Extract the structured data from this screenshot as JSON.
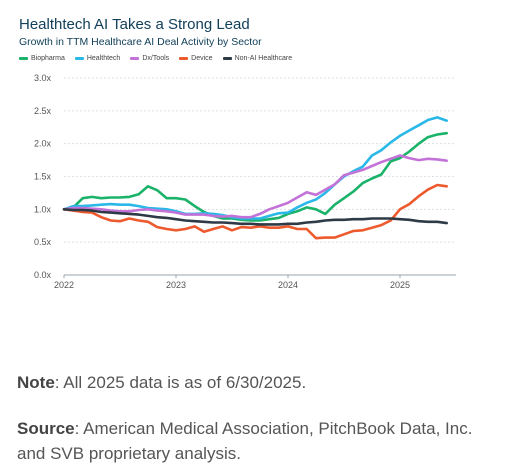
{
  "chart_data": {
    "type": "line",
    "title": "Healthtech AI Takes a Strong Lead",
    "subtitle": "Growth in TTM Healthcare AI Deal Activity by Sector",
    "xlabel": "",
    "ylabel": "",
    "ylim": [
      0,
      3
    ],
    "xlim": [
      2022.0,
      2025.5
    ],
    "y_ticks": [
      "0.0x",
      "0.5x",
      "1.0x",
      "1.5x",
      "2.0x",
      "2.5x",
      "3.0x"
    ],
    "x_ticks": [
      "2022",
      "2023",
      "2024",
      "2025"
    ],
    "grid": "horizontal",
    "legend": "top-left",
    "series": [
      {
        "name": "Biopharma",
        "color": "#1bb36a",
        "x": [
          2022.0,
          2022.083,
          2022.167,
          2022.25,
          2022.333,
          2022.417,
          2022.5,
          2022.583,
          2022.667,
          2022.75,
          2022.833,
          2022.917,
          2023.0,
          2023.083,
          2023.167,
          2023.25,
          2023.333,
          2023.417,
          2023.5,
          2023.583,
          2023.667,
          2023.75,
          2023.833,
          2023.917,
          2024.0,
          2024.083,
          2024.167,
          2024.25,
          2024.333,
          2024.417,
          2024.5,
          2024.583,
          2024.667,
          2024.75,
          2024.833,
          2024.917,
          2025.0,
          2025.083,
          2025.167,
          2025.25,
          2025.333,
          2025.417
        ],
        "y": [
          1.0,
          1.03,
          1.17,
          1.19,
          1.17,
          1.18,
          1.18,
          1.19,
          1.23,
          1.35,
          1.29,
          1.17,
          1.17,
          1.15,
          1.05,
          0.96,
          0.9,
          0.86,
          0.86,
          0.84,
          0.83,
          0.83,
          0.85,
          0.87,
          0.93,
          0.97,
          1.03,
          1.0,
          0.93,
          1.07,
          1.17,
          1.27,
          1.4,
          1.47,
          1.53,
          1.73,
          1.78,
          1.88,
          2.0,
          2.1,
          2.14,
          2.16
        ]
      },
      {
        "name": "Healthtech",
        "color": "#2ab8e8",
        "x": [
          2022.0,
          2022.083,
          2022.167,
          2022.25,
          2022.333,
          2022.417,
          2022.5,
          2022.583,
          2022.667,
          2022.75,
          2022.833,
          2022.917,
          2023.0,
          2023.083,
          2023.167,
          2023.25,
          2023.333,
          2023.417,
          2023.5,
          2023.583,
          2023.667,
          2023.75,
          2023.833,
          2023.917,
          2024.0,
          2024.083,
          2024.167,
          2024.25,
          2024.333,
          2024.417,
          2024.5,
          2024.583,
          2024.667,
          2024.75,
          2024.833,
          2024.917,
          2025.0,
          2025.083,
          2025.167,
          2025.25,
          2025.333,
          2025.417
        ],
        "y": [
          1.0,
          1.05,
          1.05,
          1.06,
          1.07,
          1.08,
          1.07,
          1.07,
          1.05,
          1.02,
          1.01,
          1.0,
          0.97,
          0.93,
          0.93,
          0.94,
          0.93,
          0.91,
          0.88,
          0.86,
          0.86,
          0.86,
          0.9,
          0.94,
          0.95,
          1.03,
          1.1,
          1.15,
          1.25,
          1.38,
          1.5,
          1.58,
          1.65,
          1.82,
          1.9,
          2.02,
          2.12,
          2.2,
          2.28,
          2.36,
          2.4,
          2.35
        ]
      },
      {
        "name": "Dx/Tools",
        "color": "#c373d8",
        "x": [
          2022.0,
          2022.083,
          2022.167,
          2022.25,
          2022.333,
          2022.417,
          2022.5,
          2022.583,
          2022.667,
          2022.75,
          2022.833,
          2022.917,
          2023.0,
          2023.083,
          2023.167,
          2023.25,
          2023.333,
          2023.417,
          2023.5,
          2023.583,
          2023.667,
          2023.75,
          2023.833,
          2023.917,
          2024.0,
          2024.083,
          2024.167,
          2024.25,
          2024.333,
          2024.417,
          2024.5,
          2024.583,
          2024.667,
          2024.75,
          2024.833,
          2024.917,
          2025.0,
          2025.083,
          2025.167,
          2025.25,
          2025.333,
          2025.417
        ],
        "y": [
          1.0,
          1.02,
          1.02,
          1.01,
          1.0,
          0.98,
          0.97,
          0.97,
          0.99,
          1.0,
          0.98,
          0.97,
          0.95,
          0.92,
          0.92,
          0.92,
          0.9,
          0.89,
          0.9,
          0.88,
          0.88,
          0.93,
          1.0,
          1.05,
          1.1,
          1.18,
          1.26,
          1.22,
          1.3,
          1.38,
          1.52,
          1.56,
          1.6,
          1.66,
          1.72,
          1.77,
          1.82,
          1.78,
          1.75,
          1.77,
          1.76,
          1.74
        ]
      },
      {
        "name": "Device",
        "color": "#ed5a2e",
        "x": [
          2022.0,
          2022.083,
          2022.167,
          2022.25,
          2022.333,
          2022.417,
          2022.5,
          2022.583,
          2022.667,
          2022.75,
          2022.833,
          2022.917,
          2023.0,
          2023.083,
          2023.167,
          2023.25,
          2023.333,
          2023.417,
          2023.5,
          2023.583,
          2023.667,
          2023.75,
          2023.833,
          2023.917,
          2024.0,
          2024.083,
          2024.167,
          2024.25,
          2024.333,
          2024.417,
          2024.5,
          2024.583,
          2024.667,
          2024.75,
          2024.833,
          2024.917,
          2025.0,
          2025.083,
          2025.167,
          2025.25,
          2025.333,
          2025.417
        ],
        "y": [
          1.0,
          0.98,
          0.96,
          0.95,
          0.88,
          0.83,
          0.82,
          0.86,
          0.83,
          0.81,
          0.73,
          0.7,
          0.68,
          0.7,
          0.74,
          0.66,
          0.7,
          0.74,
          0.68,
          0.73,
          0.72,
          0.74,
          0.72,
          0.72,
          0.74,
          0.7,
          0.7,
          0.56,
          0.57,
          0.57,
          0.62,
          0.67,
          0.68,
          0.72,
          0.76,
          0.83,
          1.0,
          1.08,
          1.2,
          1.3,
          1.37,
          1.35
        ]
      },
      {
        "name": "Non-AI Healthcare",
        "color": "#2e3a45",
        "x": [
          2022.0,
          2022.083,
          2022.167,
          2022.25,
          2022.333,
          2022.417,
          2022.5,
          2022.583,
          2022.667,
          2022.75,
          2022.833,
          2022.917,
          2023.0,
          2023.083,
          2023.167,
          2023.25,
          2023.333,
          2023.417,
          2023.5,
          2023.583,
          2023.667,
          2023.75,
          2023.833,
          2023.917,
          2024.0,
          2024.083,
          2024.167,
          2024.25,
          2024.333,
          2024.417,
          2024.5,
          2024.583,
          2024.667,
          2024.75,
          2024.833,
          2024.917,
          2025.0,
          2025.083,
          2025.167,
          2025.25,
          2025.333,
          2025.417
        ],
        "y": [
          1.0,
          0.99,
          0.99,
          0.98,
          0.96,
          0.95,
          0.94,
          0.93,
          0.92,
          0.9,
          0.88,
          0.87,
          0.85,
          0.83,
          0.82,
          0.81,
          0.8,
          0.8,
          0.79,
          0.78,
          0.78,
          0.77,
          0.77,
          0.77,
          0.78,
          0.78,
          0.8,
          0.81,
          0.83,
          0.84,
          0.84,
          0.85,
          0.85,
          0.86,
          0.86,
          0.86,
          0.85,
          0.84,
          0.82,
          0.81,
          0.81,
          0.79
        ]
      }
    ]
  },
  "note": {
    "label": "Note",
    "text": ": All 2025 data is as of 6/30/2025."
  },
  "source": {
    "label": "Source",
    "text": ": American Medical Association, PitchBook Data, Inc. and SVB proprietary analysis."
  }
}
